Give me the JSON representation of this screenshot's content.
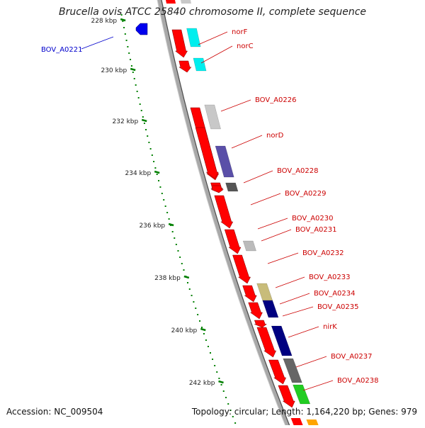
{
  "title": "Brucella ovis ATCC 25840 chromosome II, complete sequence",
  "footer": {
    "accession": "Accession: NC_009504",
    "topology": "Topology: circular; Length: 1,164,220 bp; Genes: 979"
  },
  "colors": {
    "backbone": "#999999",
    "forward_cds": "#ff0000",
    "reverse_gene": "#0000ff",
    "tick": "#008000",
    "gene_label": "#cc0000",
    "reverse_label": "#0000cc"
  },
  "scale_labels": [
    "228 kbp",
    "230 kbp",
    "232 kbp",
    "234 kbp",
    "236 kbp",
    "238 kbp",
    "240 kbp",
    "242 kbp"
  ],
  "genes": [
    {
      "label": "BOV_A0221",
      "strand": "reverse",
      "color": "#0000ee"
    },
    {
      "label": "norF",
      "strand": "forward",
      "color": "#ff0000",
      "cog_color": "#00eeee"
    },
    {
      "label": "norC",
      "strand": "forward",
      "color": "#ff0000",
      "cog_color": "#00eeee"
    },
    {
      "label": "BOV_A0226",
      "strand": "forward",
      "color": "#ff0000",
      "cog_color": "#c8c8c8"
    },
    {
      "label": "norD",
      "strand": "forward",
      "color": "#ff0000",
      "cog_color": "#5a4fa8"
    },
    {
      "label": "BOV_A0228",
      "strand": "forward",
      "color": "#ff0000",
      "cog_color": "#555555"
    },
    {
      "label": "BOV_A0229",
      "strand": "forward",
      "color": "#ff0000"
    },
    {
      "label": "BOV_A0230",
      "strand": "forward",
      "color": "#ff0000"
    },
    {
      "label": "BOV_A0231",
      "strand": "forward",
      "color": "#ff0000",
      "cog_color": "#bbbbbb"
    },
    {
      "label": "BOV_A0232",
      "strand": "forward",
      "color": "#ff0000"
    },
    {
      "label": "BOV_A0233",
      "strand": "forward",
      "color": "#ff0000",
      "cog_color": "#c8bc7a"
    },
    {
      "label": "BOV_A0234",
      "strand": "forward",
      "color": "#ff0000",
      "cog_color": "#000080"
    },
    {
      "label": "BOV_A0235",
      "strand": "forward",
      "color": "#ff0000"
    },
    {
      "label": "nirK",
      "strand": "forward",
      "color": "#ff0000",
      "cog_color": "#000080"
    },
    {
      "label": "BOV_A0237",
      "strand": "forward",
      "color": "#ff0000",
      "cog_color": "#666666"
    },
    {
      "label": "BOV_A0238",
      "strand": "forward",
      "color": "#ff0000",
      "cog_color": "#22cc22"
    }
  ]
}
